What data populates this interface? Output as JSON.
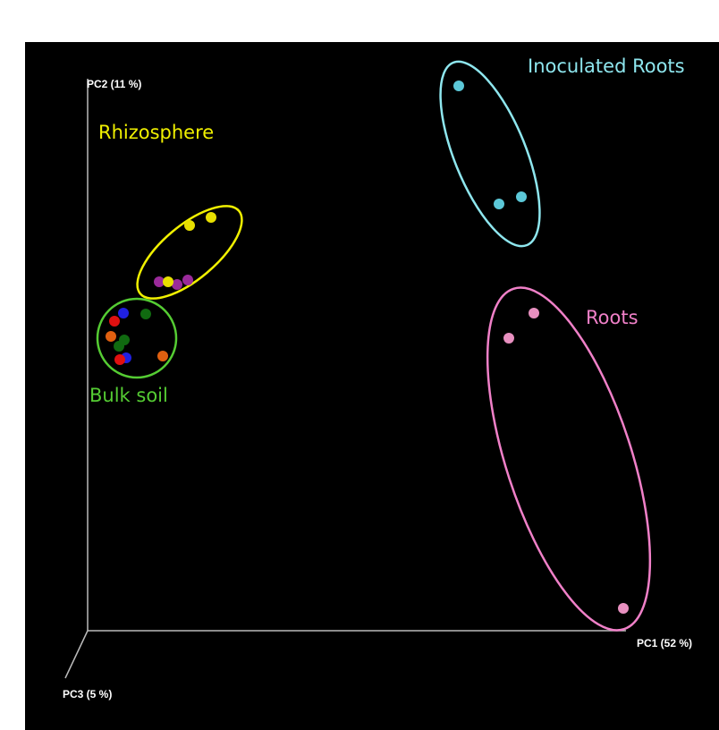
{
  "axes": {
    "pc1": "PC1 (52 %)",
    "pc2": "PC2 (11 %)",
    "pc3": "PC3 (5 %)"
  },
  "groups": [
    "Inoculated Roots",
    "Rhizosphere",
    "Bulk soil",
    "Roots"
  ]
}
